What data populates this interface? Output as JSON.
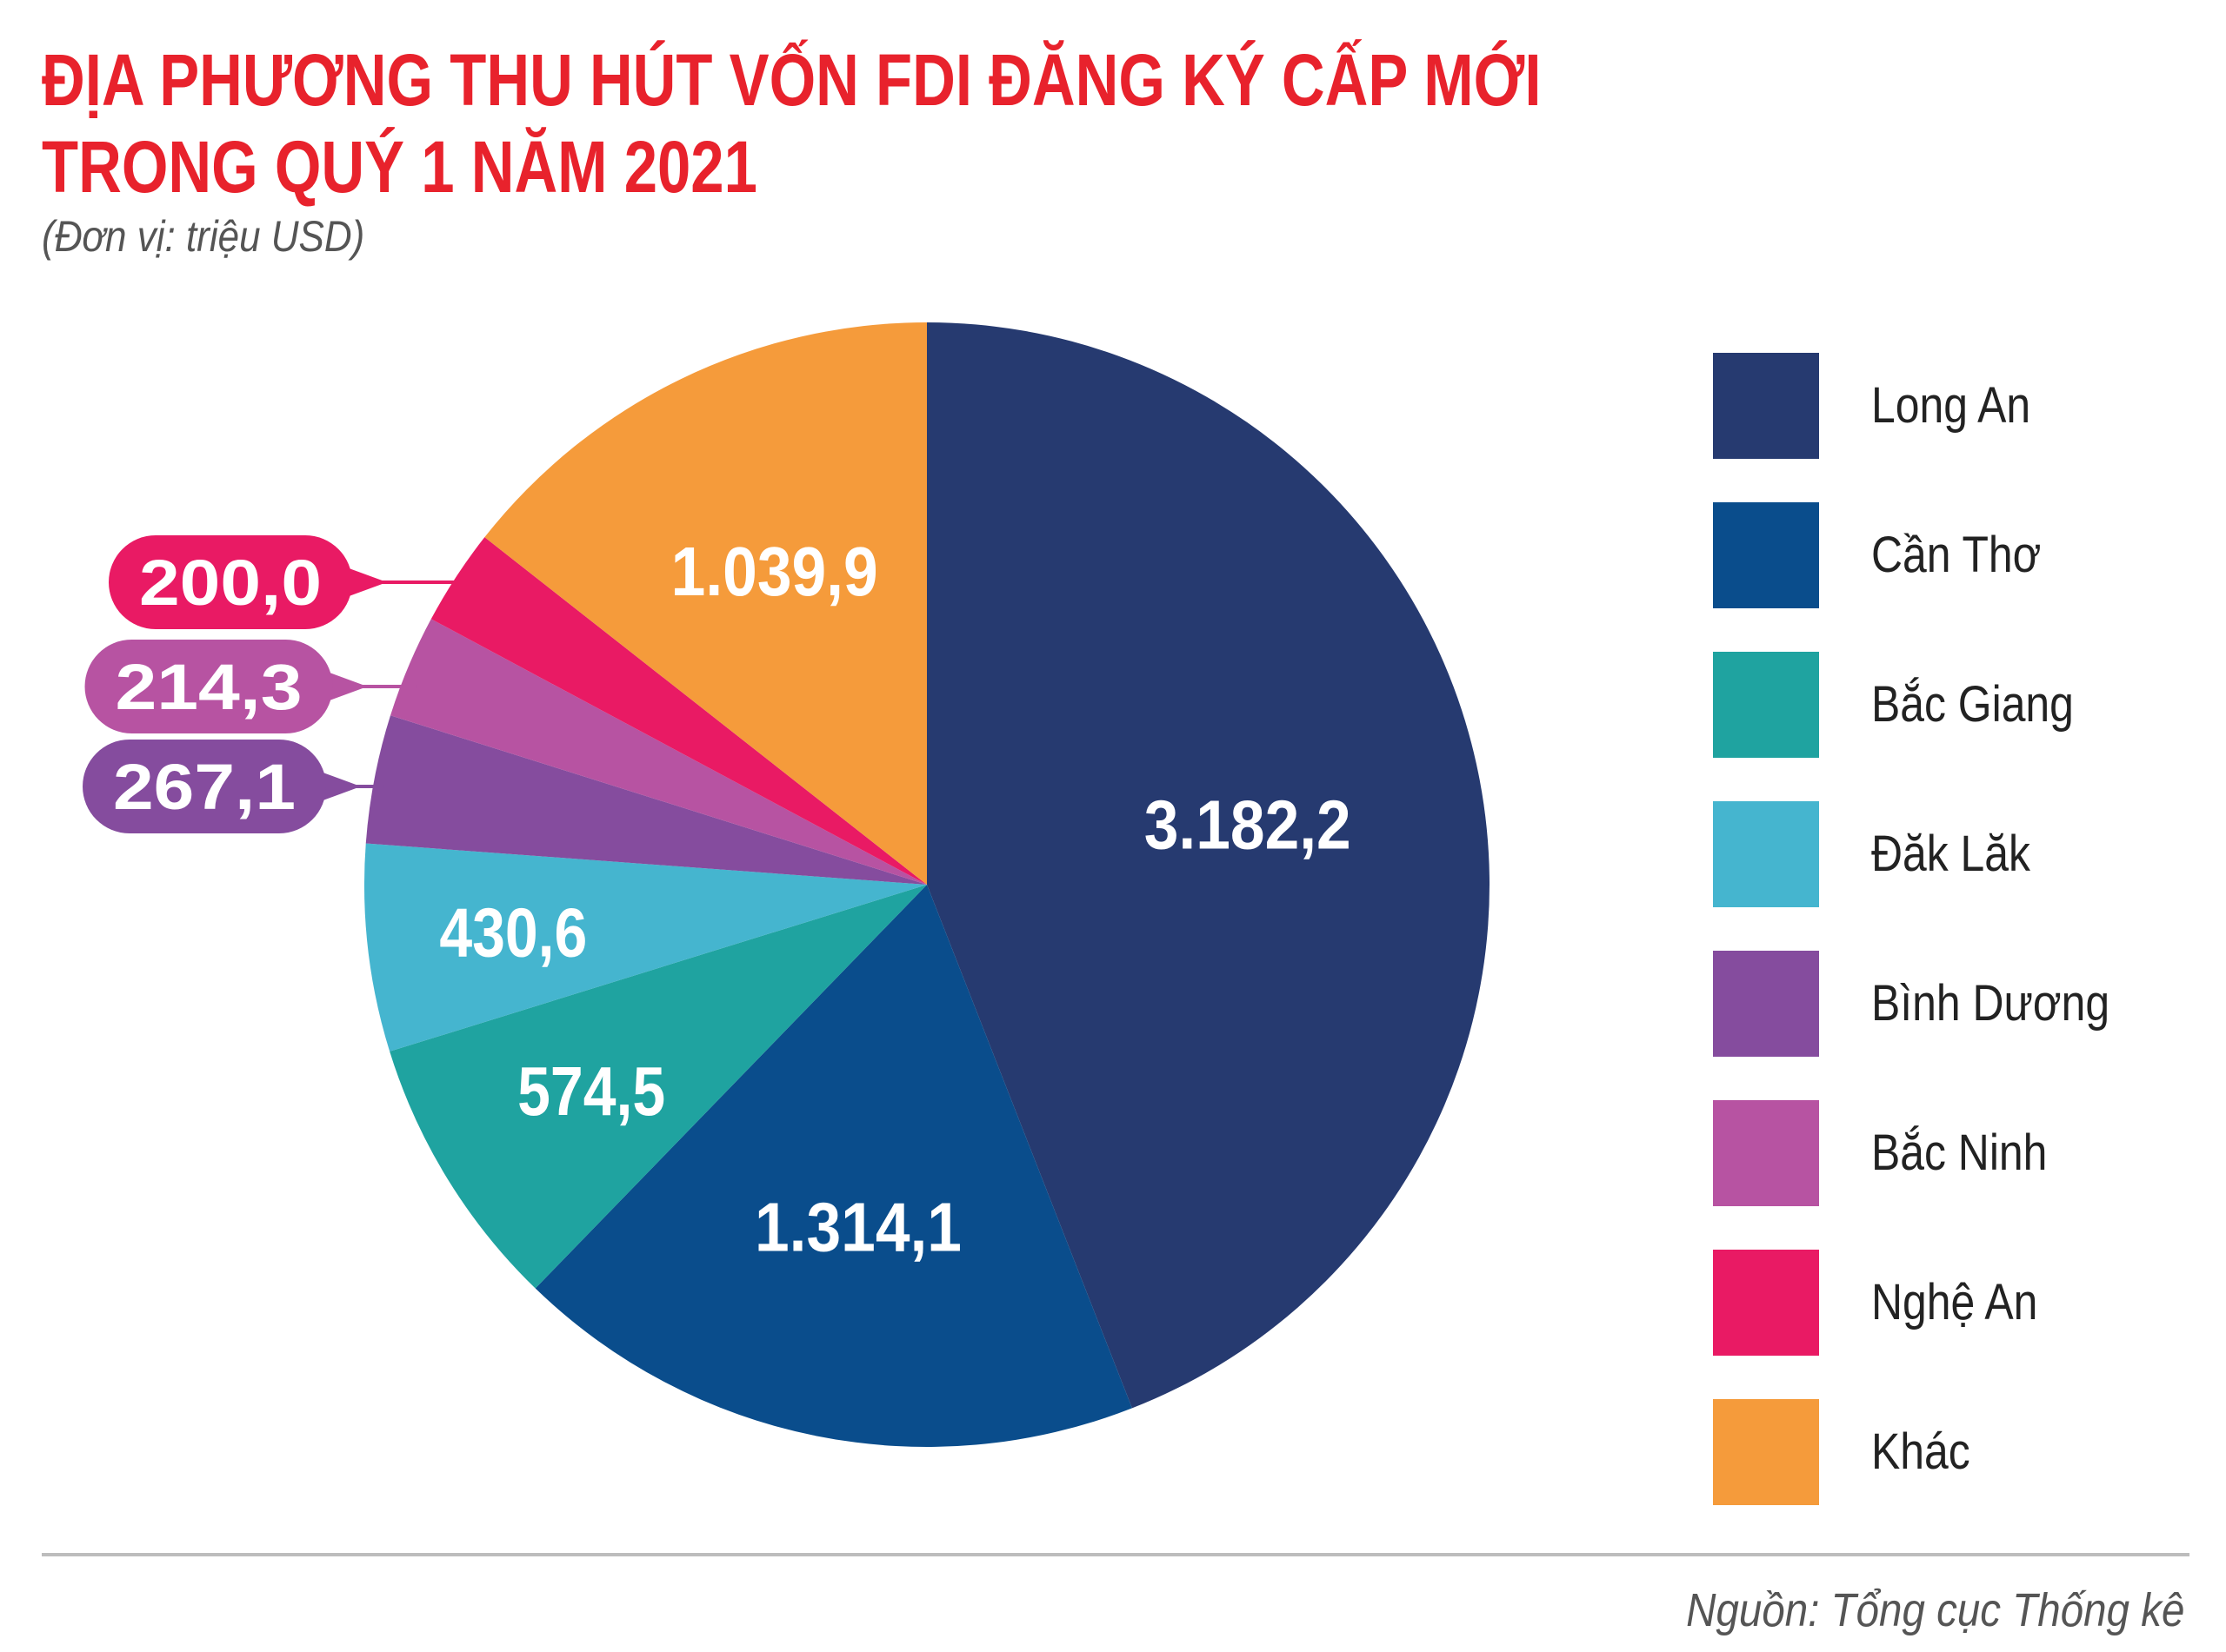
{
  "header": {
    "title_line1": "ĐỊA PHƯƠNG THU HÚT VỐN FDI ĐĂNG KÝ CẤP MỚI",
    "title_line2": "TRONG QUÝ 1 NĂM 2021",
    "unit": "(Đơn vị: triệu USD)"
  },
  "chart_data": {
    "type": "pie",
    "title": "ĐỊA PHƯƠNG THU HÚT VỐN FDI ĐĂNG KÝ CẤP MỚI TRONG QUÝ 1 NĂM 2021",
    "subtitle": "(Đơn vị: triệu USD)",
    "legend_position": "right",
    "categories": [
      "Long An",
      "Cần Thơ",
      "Bắc Giang",
      "Đăk Lăk",
      "Bình Dương",
      "Bắc Ninh",
      "Nghệ An",
      "Khác"
    ],
    "values": [
      3182.2,
      1314.1,
      574.5,
      430.6,
      267.1,
      214.3,
      200.0,
      1039.9
    ],
    "labels": [
      "3.182,2",
      "1.314,1",
      "574,5",
      "430,6",
      "267,1",
      "214,3",
      "200,0",
      "1.039,9"
    ],
    "colors": [
      "#263a70",
      "#0a4d8c",
      "#1fa3a0",
      "#45b5cf",
      "#854c9e",
      "#b753a2",
      "#e91a64",
      "#f59b3b"
    ]
  },
  "footer": {
    "source": "Nguồn: Tổng cục Thống kê"
  }
}
